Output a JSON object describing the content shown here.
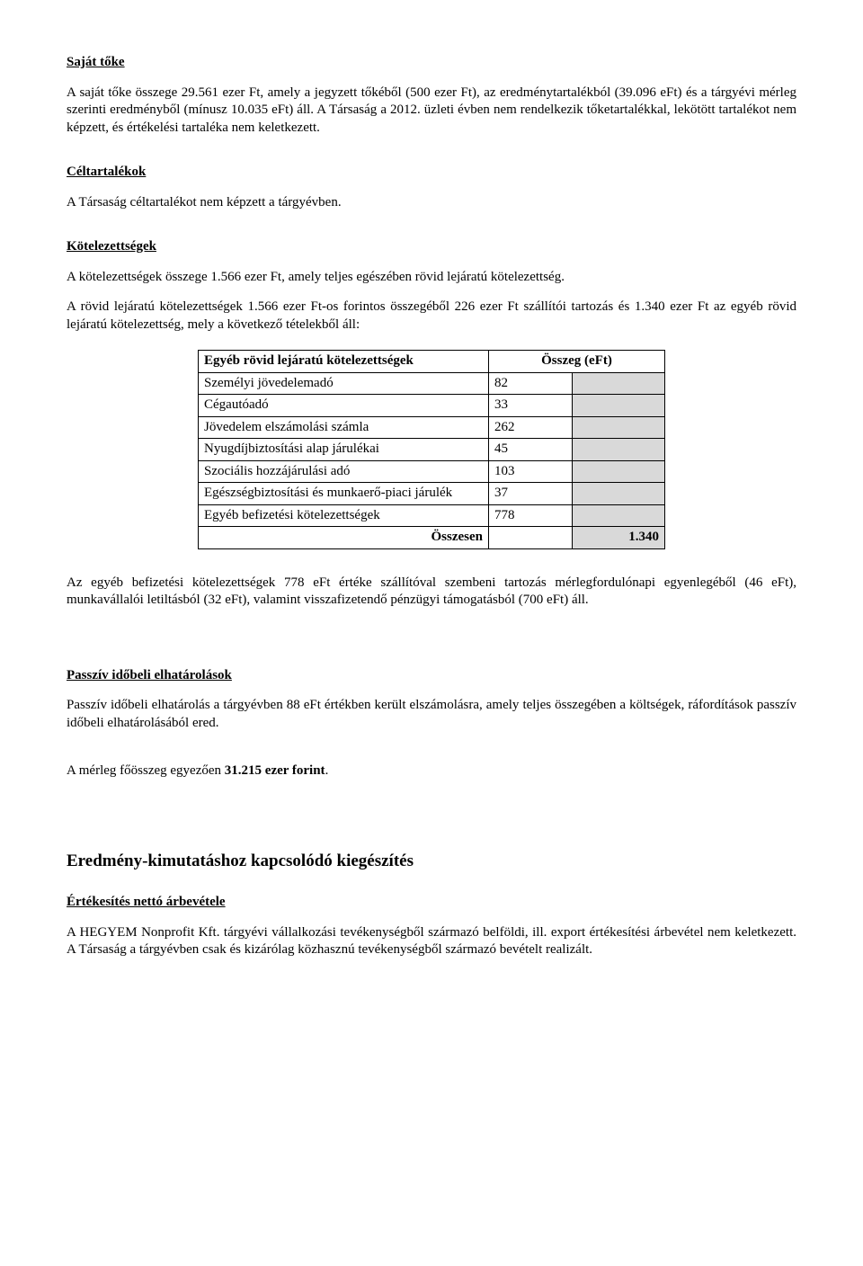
{
  "s1": {
    "title": "Saját tőke",
    "p1": "A saját tőke összege 29.561 ezer Ft, amely a jegyzett tőkéből (500 ezer Ft), az eredménytartalékból (39.096 eFt) és a tárgyévi mérleg szerinti eredményből (mínusz 10.035 eFt) áll. A Társaság a 2012. üzleti évben nem rendelkezik tőketartalékkal, lekötött tartalékot nem képzett, és értékelési tartaléka nem keletkezett."
  },
  "s2": {
    "title": "Céltartalékok",
    "p1": "A Társaság céltartalékot nem képzett a tárgyévben."
  },
  "s3": {
    "title": "Kötelezettségek",
    "p1": "A kötelezettségek összege 1.566 ezer Ft, amely teljes egészében rövid lejáratú kötelezettség.",
    "p2": "A rövid lejáratú kötelezettségek 1.566 ezer Ft-os forintos összegéből 226 ezer Ft szállítói tartozás és 1.340 ezer Ft az egyéb rövid lejáratú kötelezettség, mely a következő tételekből áll:"
  },
  "table": {
    "header_label": "Egyéb rövid lejáratú kötelezettségek",
    "header_amount": "Összeg (eFt)",
    "rows": [
      {
        "label": "Személyi jövedelemadó",
        "val": "82"
      },
      {
        "label": "Cégautóadó",
        "val": "33"
      },
      {
        "label": "Jövedelem elszámolási számla",
        "val": "262"
      },
      {
        "label": "Nyugdíjbiztosítási alap járulékai",
        "val": "45"
      },
      {
        "label": "Szociális hozzájárulási adó",
        "val": "103"
      },
      {
        "label": "Egészségbiztosítási és munkaerő-piaci járulék",
        "val": "37"
      },
      {
        "label": "Egyéb befizetési kötelezettségek",
        "val": "778"
      }
    ],
    "sum_label": "Összesen",
    "sum_val": "1.340"
  },
  "s4": {
    "p1": "Az egyéb befizetési kötelezettségek 778 eFt értéke szállítóval szembeni tartozás mérlegfordulónapi egyenlegéből (46 eFt), munkavállalói letiltásból (32 eFt), valamint visszafizetendő pénzügyi támogatásból (700 eFt) áll."
  },
  "s5": {
    "title": "Passzív időbeli elhatárolások",
    "p1": "Passzív időbeli elhatárolás a tárgyévben 88 eFt értékben került elszámolásra, amely teljes összegében a költségek, ráfordítások passzív időbeli elhatárolásából ered."
  },
  "s6_prefix": "A mérleg főösszeg egyezően ",
  "s6_bold": "31.215 ezer forint",
  "s6_suffix": ".",
  "s7": {
    "title": "Eredmény-kimutatáshoz kapcsolódó kiegészítés",
    "sub": "Értékesítés nettó árbevétele",
    "p1": "A HEGYEM Nonprofit Kft. tárgyévi vállalkozási tevékenységből származó belföldi, ill. export értékesítési árbevétel nem keletkezett. A Társaság a tárgyévben csak és kizárólag közhasznú tevékenységből származó bevételt realizált."
  }
}
